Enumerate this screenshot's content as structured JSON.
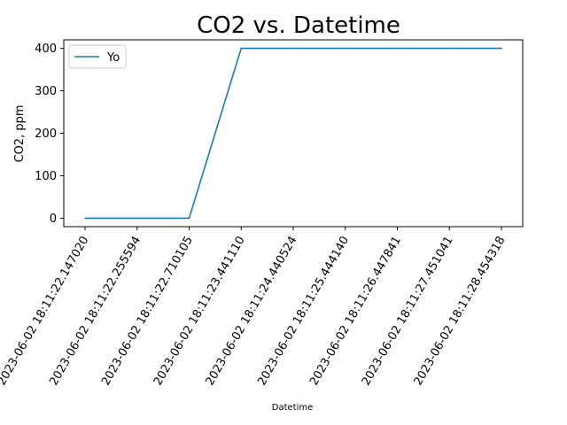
{
  "chart_data": {
    "type": "line",
    "title": "CO2 vs. Datetime",
    "xlabel": "Datetime",
    "ylabel": "CO2, ppm",
    "categories": [
      "2023-06-02 18:11:22.147020",
      "2023-06-02 18:11:22.255594",
      "2023-06-02 18:11:22.710105",
      "2023-06-02 18:11:23.441110",
      "2023-06-02 18:11:24.440524",
      "2023-06-02 18:11:25.444140",
      "2023-06-02 18:11:26.447841",
      "2023-06-02 18:11:27.451041",
      "2023-06-02 18:11:28.454318"
    ],
    "series": [
      {
        "name": "Yo",
        "color": "#1f77b4",
        "values": [
          0,
          0,
          0,
          400,
          400,
          400,
          400,
          400,
          400
        ]
      }
    ],
    "yticks": [
      0,
      100,
      200,
      300,
      400
    ],
    "ylim": [
      -20,
      420
    ],
    "grid": false,
    "legend": "upper-left"
  }
}
